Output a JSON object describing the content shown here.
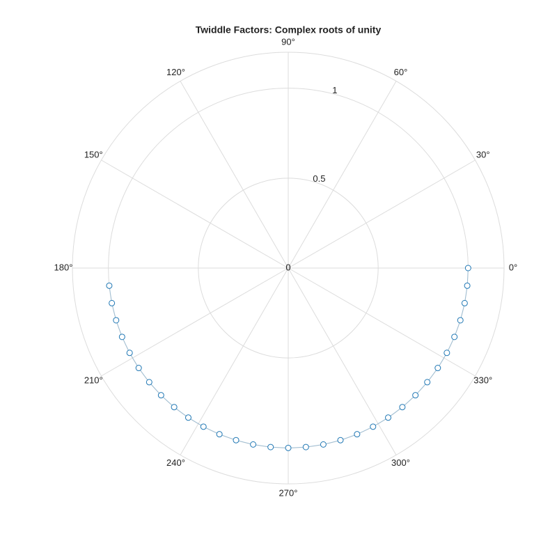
{
  "chart_data": {
    "type": "polar-scatter",
    "title": "Twiddle Factors: Complex roots of unity",
    "series": [
      {
        "color": "#1f77b4",
        "theta": [
          0,
          -5.625,
          -11.25,
          -16.875,
          -22.5,
          -28.125,
          -33.75,
          -39.375,
          -45,
          -50.625,
          -56.25,
          -61.875,
          -67.5,
          -73.125,
          -78.75,
          -84.375,
          -90,
          -95.625,
          -101.25,
          -106.875,
          -112.5,
          -118.125,
          -123.75,
          -129.375,
          -135,
          -140.625,
          -146.25,
          -151.875,
          -157.5,
          -163.125,
          -168.75,
          -174.375
        ],
        "r": [
          1,
          1,
          1,
          1,
          1,
          1,
          1,
          1,
          1,
          1,
          1,
          1,
          1,
          1,
          1,
          1,
          1,
          1,
          1,
          1,
          1,
          1,
          1,
          1,
          1,
          1,
          1,
          1,
          1,
          1,
          1,
          1
        ]
      }
    ],
    "rlim": [
      0,
      1.2
    ],
    "rticks": [
      0,
      0.5,
      1
    ],
    "thetaticks": [
      {
        "value": 0,
        "label": "0°"
      },
      {
        "value": 30,
        "label": "30°"
      },
      {
        "value": 60,
        "label": "60°"
      },
      {
        "value": 90,
        "label": "90°"
      },
      {
        "value": 120,
        "label": "120°"
      },
      {
        "value": 150,
        "label": "150°"
      },
      {
        "value": 180,
        "label": "180°"
      },
      {
        "value": 210,
        "label": "210°"
      },
      {
        "value": 240,
        "label": "240°"
      },
      {
        "value": 270,
        "label": "270°"
      },
      {
        "value": 300,
        "label": "300°"
      },
      {
        "value": 330,
        "label": "330°"
      }
    ],
    "grid": true
  }
}
